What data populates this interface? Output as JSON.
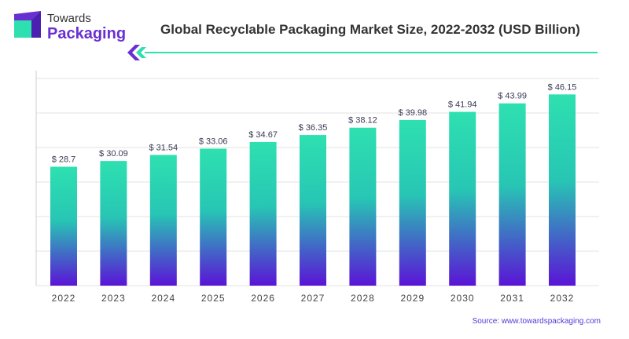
{
  "brand": {
    "line1": "Towards",
    "line2": "Packaging"
  },
  "chart_data": {
    "type": "bar",
    "title": "Global Recyclable Packaging Market Size, 2022-2032 (USD Billion)",
    "categories": [
      "2022",
      "2023",
      "2024",
      "2025",
      "2026",
      "2027",
      "2028",
      "2029",
      "2030",
      "2031",
      "2032"
    ],
    "values": [
      28.7,
      30.09,
      31.54,
      33.06,
      34.67,
      36.35,
      38.12,
      39.98,
      41.94,
      43.99,
      46.15
    ],
    "value_labels": [
      "$ 28.7",
      "$ 30.09",
      "$ 31.54",
      "$ 33.06",
      "$ 34.67",
      "$ 36.35",
      "$ 38.12",
      "$ 39.98",
      "$ 41.94",
      "$ 43.99",
      "$ 46.15"
    ],
    "xlabel": "",
    "ylabel": "",
    "ylim": [
      0,
      50
    ],
    "grid": true,
    "colors": {
      "bar_top": "#2ee0b0",
      "bar_bottom": "#5a14d6",
      "grid": "#e3e3e3",
      "label": "#3a3a55"
    }
  },
  "source": "Source: www.towardspackaging.com",
  "colors": {
    "brand_purple": "#6a2fd0",
    "accent_teal": "#2ee0b0",
    "source_blue": "#4f3ad8"
  }
}
